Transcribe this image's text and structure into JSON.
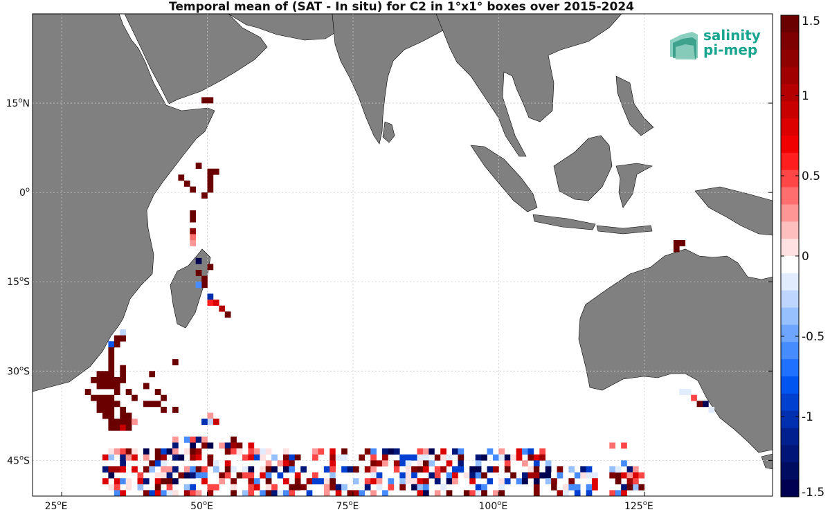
{
  "title": "Temporal mean of (SAT - In situ) for C2 in 1°x1° boxes over 2015-2024",
  "logo": {
    "line1": "salinity",
    "line2": "pi-mep",
    "color": "#18a58f"
  },
  "colors": {
    "land": "#808080",
    "ocean": "#ffffff",
    "grid": "#c8c8c8",
    "frame": "#000000"
  },
  "map": {
    "lon_range": [
      20,
      147
    ],
    "lat_range": [
      -51,
      30
    ],
    "lon_ticks": [
      {
        "value": 25,
        "label": "25",
        "suffix": "E"
      },
      {
        "value": 50,
        "label": "50",
        "suffix": "E"
      },
      {
        "value": 75,
        "label": "75",
        "suffix": "E"
      },
      {
        "value": 100,
        "label": "100",
        "suffix": "E"
      },
      {
        "value": 125,
        "label": "125",
        "suffix": "E"
      }
    ],
    "lat_ticks": [
      {
        "value": 15,
        "label": "15",
        "suffix": "N"
      },
      {
        "value": 0,
        "label": "0",
        "suffix": ""
      },
      {
        "value": -15,
        "label": "15",
        "suffix": "S"
      },
      {
        "value": -30,
        "label": "30",
        "suffix": "S"
      },
      {
        "value": -45,
        "label": "45",
        "suffix": "S"
      }
    ]
  },
  "colorbar": {
    "min": -1.5,
    "max": 1.5,
    "tick_labels": [
      "1.5",
      "1",
      "0.5",
      "0",
      "-0.5",
      "-1",
      "-1.5"
    ],
    "tick_values": [
      1.5,
      1,
      0.5,
      0,
      -0.5,
      -1,
      -1.5
    ],
    "colors_top_to_bottom": [
      "#6b0000",
      "#7f0000",
      "#8f0000",
      "#a00000",
      "#b40000",
      "#c80000",
      "#dc0000",
      "#f00000",
      "#ff1e1e",
      "#ff4646",
      "#ff6e6e",
      "#ff9696",
      "#ffbebe",
      "#ffe1e1",
      "#ffffff",
      "#e1ecff",
      "#bed6ff",
      "#96c0ff",
      "#6ea6ff",
      "#468cff",
      "#1e72ff",
      "#0055f0",
      "#0040d0",
      "#0030b0",
      "#002090",
      "#001578",
      "#000c60",
      "#000050"
    ]
  },
  "chart_data": {
    "type": "heatmap",
    "title": "Temporal mean of (SAT - In situ) for C2 in 1°x1° boxes over 2015-2024",
    "units": "1°x1° boxes, lon/lat degrees",
    "value_range": [
      -1.5,
      1.5
    ],
    "cells": [
      {
        "lon": 49,
        "lat": 15,
        "v": 1.5
      },
      {
        "lon": 50,
        "lat": 15,
        "v": 1.5
      },
      {
        "lon": 48,
        "lat": 4,
        "v": 1.5
      },
      {
        "lon": 50,
        "lat": 3,
        "v": 1.5
      },
      {
        "lon": 51,
        "lat": 3,
        "v": 1.5
      },
      {
        "lon": 45,
        "lat": 2,
        "v": 1.5
      },
      {
        "lon": 46,
        "lat": 1,
        "v": 1.5
      },
      {
        "lon": 50,
        "lat": 2,
        "v": 1.5
      },
      {
        "lon": 50,
        "lat": 1,
        "v": 1.5
      },
      {
        "lon": 47,
        "lat": 0,
        "v": 1.5
      },
      {
        "lon": 50,
        "lat": 0,
        "v": 1.5
      },
      {
        "lon": 49,
        "lat": -1,
        "v": 1.5
      },
      {
        "lon": 47,
        "lat": -4,
        "v": 1.5
      },
      {
        "lon": 47,
        "lat": -5,
        "v": 1.5
      },
      {
        "lon": 47,
        "lat": -7,
        "v": 1.2
      },
      {
        "lon": 47,
        "lat": -8,
        "v": 0.4
      },
      {
        "lon": 47,
        "lat": -9,
        "v": 0.3
      },
      {
        "lon": 48,
        "lat": -12,
        "v": -1.5
      },
      {
        "lon": 48,
        "lat": -14,
        "v": 1.5
      },
      {
        "lon": 50,
        "lat": -13,
        "v": 1.5
      },
      {
        "lon": 49,
        "lat": -15,
        "v": 1.5
      },
      {
        "lon": 49,
        "lat": -16,
        "v": 1.5
      },
      {
        "lon": 48,
        "lat": -16,
        "v": -0.6
      },
      {
        "lon": 50,
        "lat": -18,
        "v": -1.0
      },
      {
        "lon": 50,
        "lat": -19,
        "v": 0.6
      },
      {
        "lon": 51,
        "lat": -19,
        "v": 0.8
      },
      {
        "lon": 52,
        "lat": -20,
        "v": 1.0
      },
      {
        "lon": 53,
        "lat": -21,
        "v": 1.5
      },
      {
        "lon": 130,
        "lat": -9,
        "v": 1.5
      },
      {
        "lon": 131,
        "lat": -9,
        "v": 1.5
      },
      {
        "lon": 130,
        "lat": -10,
        "v": 1.5
      },
      {
        "lon": 35,
        "lat": -24,
        "v": -0.3
      },
      {
        "lon": 34,
        "lat": -25,
        "v": 1.5
      },
      {
        "lon": 35,
        "lat": -25,
        "v": 1.5
      },
      {
        "lon": 33,
        "lat": -26,
        "v": -0.8
      },
      {
        "lon": 34,
        "lat": -26,
        "v": 1.5
      },
      {
        "lon": 33,
        "lat": -27,
        "v": 1.5
      },
      {
        "lon": 33,
        "lat": -28,
        "v": 1.5
      },
      {
        "lon": 33,
        "lat": -29,
        "v": 1.5
      },
      {
        "lon": 33,
        "lat": -30,
        "v": 1.5
      },
      {
        "lon": 35,
        "lat": -30,
        "v": 1.5
      },
      {
        "lon": 44,
        "lat": -29,
        "v": 1.5
      },
      {
        "lon": 31,
        "lat": -31,
        "v": 1.5
      },
      {
        "lon": 32,
        "lat": -31,
        "v": 1.5
      },
      {
        "lon": 33,
        "lat": -31,
        "v": 1.5
      },
      {
        "lon": 35,
        "lat": -31,
        "v": 1.5
      },
      {
        "lon": 40,
        "lat": -31,
        "v": 1.5
      },
      {
        "lon": 30,
        "lat": -32,
        "v": 1.5
      },
      {
        "lon": 31,
        "lat": -32,
        "v": 1.5
      },
      {
        "lon": 32,
        "lat": -32,
        "v": 1.5
      },
      {
        "lon": 33,
        "lat": -32,
        "v": 1.5
      },
      {
        "lon": 34,
        "lat": -32,
        "v": 1.5
      },
      {
        "lon": 35,
        "lat": -32,
        "v": 1.5
      },
      {
        "lon": 39,
        "lat": -33,
        "v": 1.5
      },
      {
        "lon": 29,
        "lat": -34,
        "v": 1.5
      },
      {
        "lon": 31,
        "lat": -33,
        "v": 1.5
      },
      {
        "lon": 32,
        "lat": -33,
        "v": 1.5
      },
      {
        "lon": 33,
        "lat": -33,
        "v": 1.5
      },
      {
        "lon": 34,
        "lat": -33,
        "v": 1.5
      },
      {
        "lon": 36,
        "lat": -34,
        "v": 1.5
      },
      {
        "lon": 41,
        "lat": -34,
        "v": 1.5
      },
      {
        "lon": 30,
        "lat": -35,
        "v": 1.5
      },
      {
        "lon": 31,
        "lat": -35,
        "v": 1.5
      },
      {
        "lon": 32,
        "lat": -35,
        "v": 1.5
      },
      {
        "lon": 33,
        "lat": -35,
        "v": 1.5
      },
      {
        "lon": 34,
        "lat": -34,
        "v": 1.5
      },
      {
        "lon": 37,
        "lat": -35,
        "v": 1.5
      },
      {
        "lon": 42,
        "lat": -35,
        "v": 1.5
      },
      {
        "lon": 31,
        "lat": -36,
        "v": 1.5
      },
      {
        "lon": 32,
        "lat": -36,
        "v": 1.5
      },
      {
        "lon": 33,
        "lat": -36,
        "v": 1.5
      },
      {
        "lon": 34,
        "lat": -36,
        "v": 1.5
      },
      {
        "lon": 39,
        "lat": -36,
        "v": 1.5
      },
      {
        "lon": 40,
        "lat": -36,
        "v": 1.5
      },
      {
        "lon": 41,
        "lat": -36,
        "v": 1.5
      },
      {
        "lon": 31,
        "lat": -37,
        "v": 1.5
      },
      {
        "lon": 32,
        "lat": -37,
        "v": 1.5
      },
      {
        "lon": 33,
        "lat": -37,
        "v": 1.5
      },
      {
        "lon": 35,
        "lat": -37,
        "v": 1.5
      },
      {
        "lon": 42,
        "lat": -37,
        "v": 1.5
      },
      {
        "lon": 44,
        "lat": -37,
        "v": 1.5
      },
      {
        "lon": 32,
        "lat": -38,
        "v": 1.5
      },
      {
        "lon": 33,
        "lat": -38,
        "v": 1.5
      },
      {
        "lon": 35,
        "lat": -38,
        "v": 1.5
      },
      {
        "lon": 36,
        "lat": -38,
        "v": 1.5
      },
      {
        "lon": 33,
        "lat": -39,
        "v": 1.5
      },
      {
        "lon": 34,
        "lat": -39,
        "v": 1.5
      },
      {
        "lon": 35,
        "lat": -39,
        "v": 1.5
      },
      {
        "lon": 36,
        "lat": -39,
        "v": 1.5
      },
      {
        "lon": 37,
        "lat": -39,
        "v": 0.3
      },
      {
        "lon": 33,
        "lat": -40,
        "v": 1.5
      },
      {
        "lon": 34,
        "lat": -40,
        "v": 1.5
      },
      {
        "lon": 35,
        "lat": -40,
        "v": 0.9
      },
      {
        "lon": 36,
        "lat": -40,
        "v": 1.5
      },
      {
        "lon": 50,
        "lat": -38,
        "v": 0.3
      },
      {
        "lon": 50,
        "lat": -39,
        "v": -0.3
      },
      {
        "lon": 49,
        "lat": -39,
        "v": -1.0
      },
      {
        "lon": 51,
        "lat": -39,
        "v": 0.9
      },
      {
        "lon": 131,
        "lat": -34,
        "v": -0.2
      },
      {
        "lon": 132,
        "lat": -34,
        "v": -0.2
      },
      {
        "lon": 133,
        "lat": -35,
        "v": 0.5
      },
      {
        "lon": 134,
        "lat": -36,
        "v": 1.5
      },
      {
        "lon": 135,
        "lat": -36,
        "v": -1.5
      },
      {
        "lon": 136,
        "lat": -37,
        "v": -0.2
      },
      {
        "lon": 131,
        "lat": -34,
        "v": -0.2
      },
      {
        "lon": 119,
        "lat": -43,
        "v": 0.4
      },
      {
        "lon": 121,
        "lat": -43,
        "v": 0.5
      },
      {
        "lon": 121,
        "lat": -46,
        "v": -0.6
      },
      {
        "lon": 120,
        "lat": -48,
        "v": 1.5
      },
      {
        "lon": 123,
        "lat": -50,
        "v": -0.4
      }
    ],
    "band_seed": 7,
    "band": {
      "lon_range": [
        32,
        124
      ],
      "lat_range": [
        -51,
        -41
      ],
      "lon_step": 1,
      "lat_step": 1,
      "fill_fraction": 0.55,
      "value_distribution": "mixed [-1.5, 1.5]"
    }
  }
}
